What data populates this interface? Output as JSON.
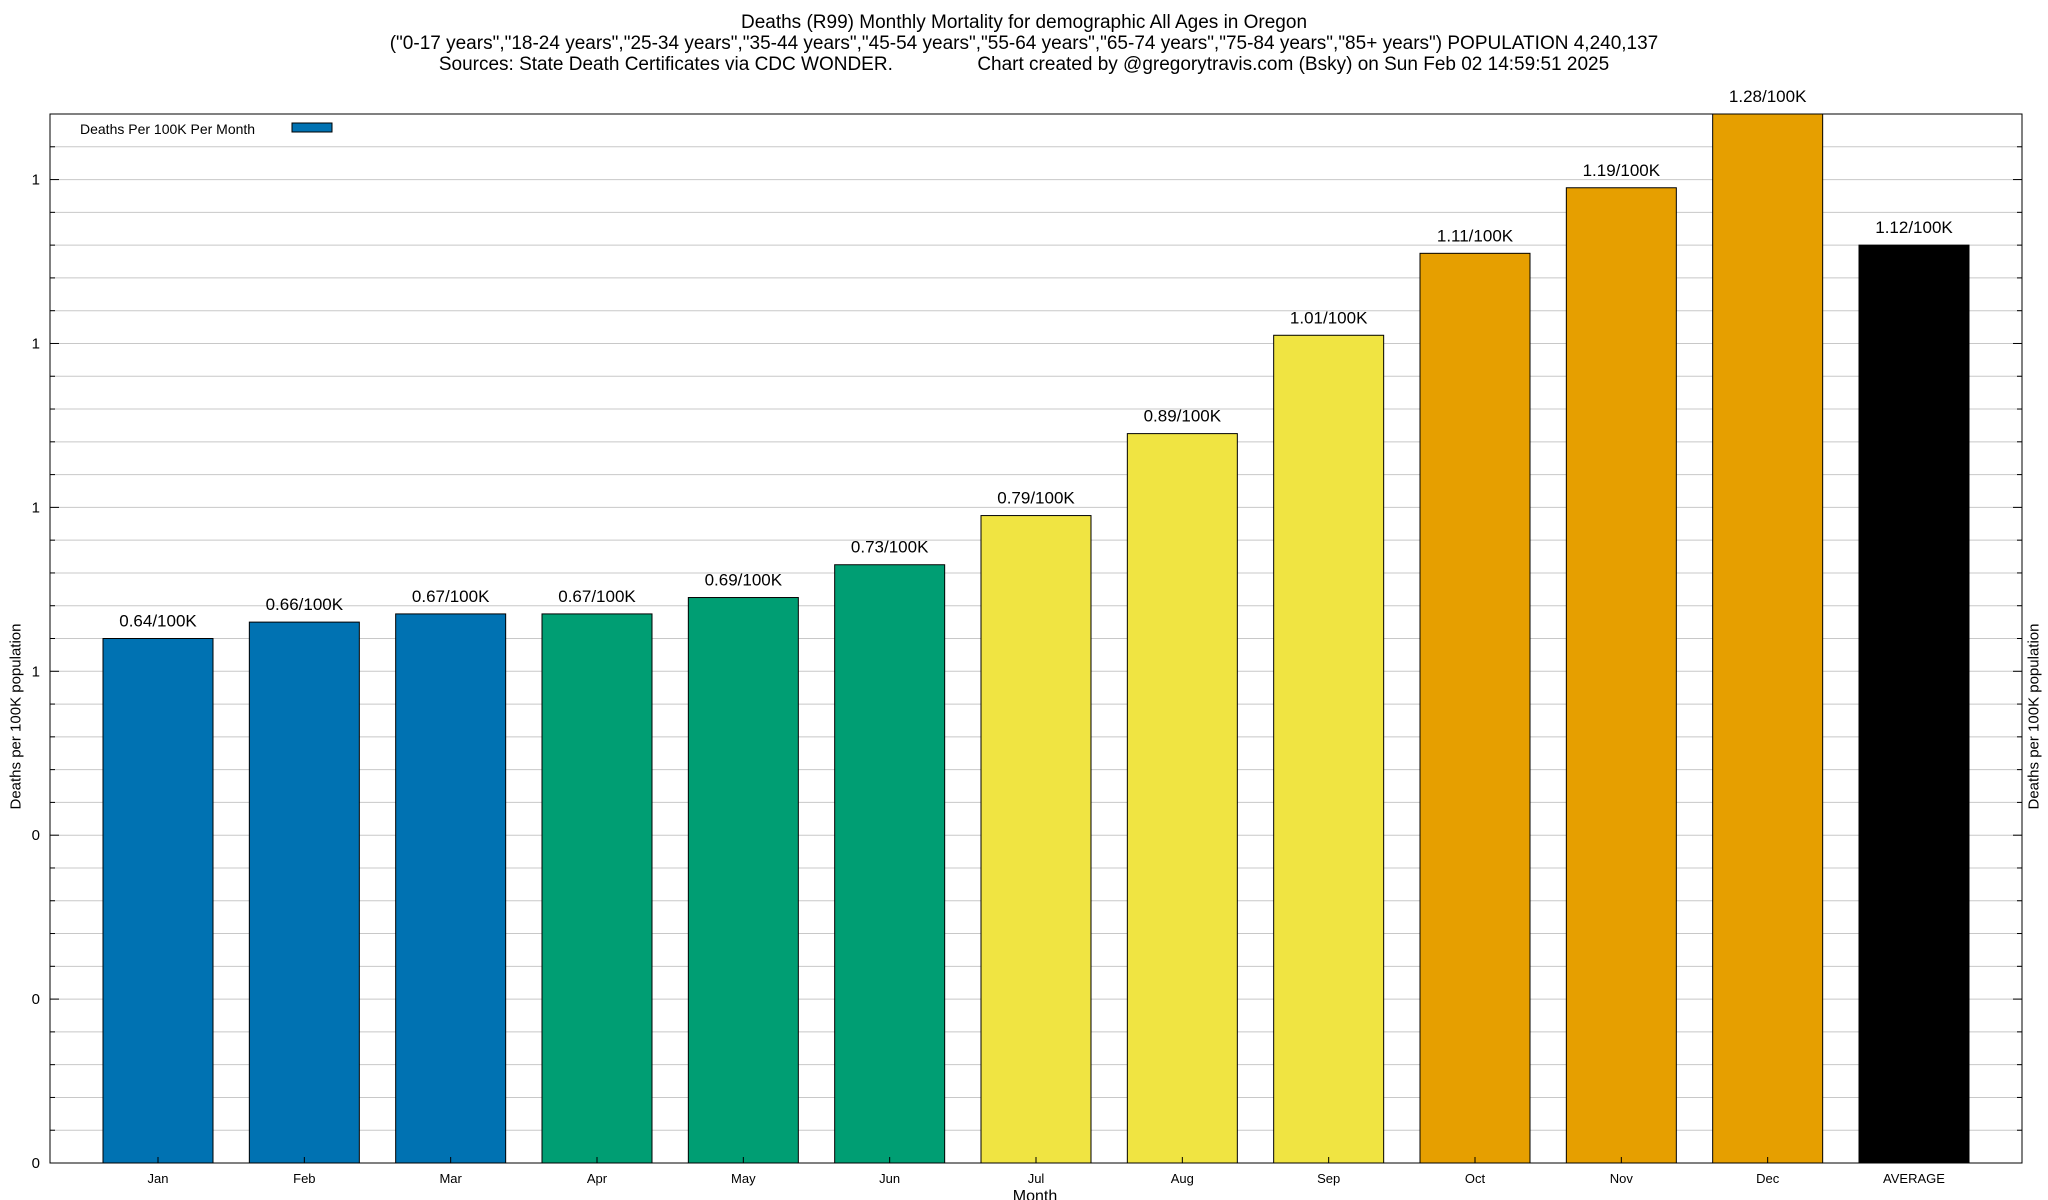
{
  "header": {
    "title_line1": "Deaths (R99) Monthly Mortality for demographic All Ages in Oregon",
    "title_line2": "(\"0-17 years\",\"18-24 years\",\"25-34 years\",\"35-44 years\",\"45-54 years\",\"55-64 years\",\"65-74 years\",\"75-84 years\",\"85+ years\") POPULATION 4,240,137",
    "title_line3": "Sources: State Death Certificates via CDC WONDER.                Chart created by @gregorytravis.com (Bsky) on Sun Feb 02 14:59:51 2025"
  },
  "chart_data": {
    "type": "bar",
    "title": "Deaths (R99) Monthly Mortality for demographic All Ages in Oregon",
    "xlabel": "Month",
    "ylabel": "Deaths per 100K population",
    "y2label": "Deaths per 100K population",
    "categories": [
      "Jan",
      "Feb",
      "Mar",
      "Apr",
      "May",
      "Jun",
      "Jul",
      "Aug",
      "Sep",
      "Oct",
      "Nov",
      "Dec",
      "AVERAGE"
    ],
    "values": [
      0.64,
      0.66,
      0.67,
      0.67,
      0.69,
      0.73,
      0.79,
      0.89,
      1.01,
      1.11,
      1.19,
      1.28,
      1.12
    ],
    "data_labels": [
      "0.64/100K",
      "0.66/100K",
      "0.67/100K",
      "0.67/100K",
      "0.69/100K",
      "0.73/100K",
      "0.79/100K",
      "0.89/100K",
      "1.01/100K",
      "1.11/100K",
      "1.19/100K",
      "1.28/100K",
      "1.12/100K"
    ],
    "bar_colors": [
      "#0072b2",
      "#0072b2",
      "#0072b2",
      "#009e73",
      "#009e73",
      "#009e73",
      "#f0e442",
      "#f0e442",
      "#f0e442",
      "#e69f00",
      "#e69f00",
      "#e69f00",
      "#000000"
    ],
    "ytick_labels": [
      "0",
      "0",
      "0",
      "1",
      "1",
      "1",
      "1"
    ],
    "ylim": [
      0,
      1.28
    ],
    "grid": true,
    "legend": {
      "placement": "top-left",
      "entries": [
        {
          "name": "Deaths Per 100K Per Month",
          "color": "#0072b2"
        }
      ]
    }
  }
}
